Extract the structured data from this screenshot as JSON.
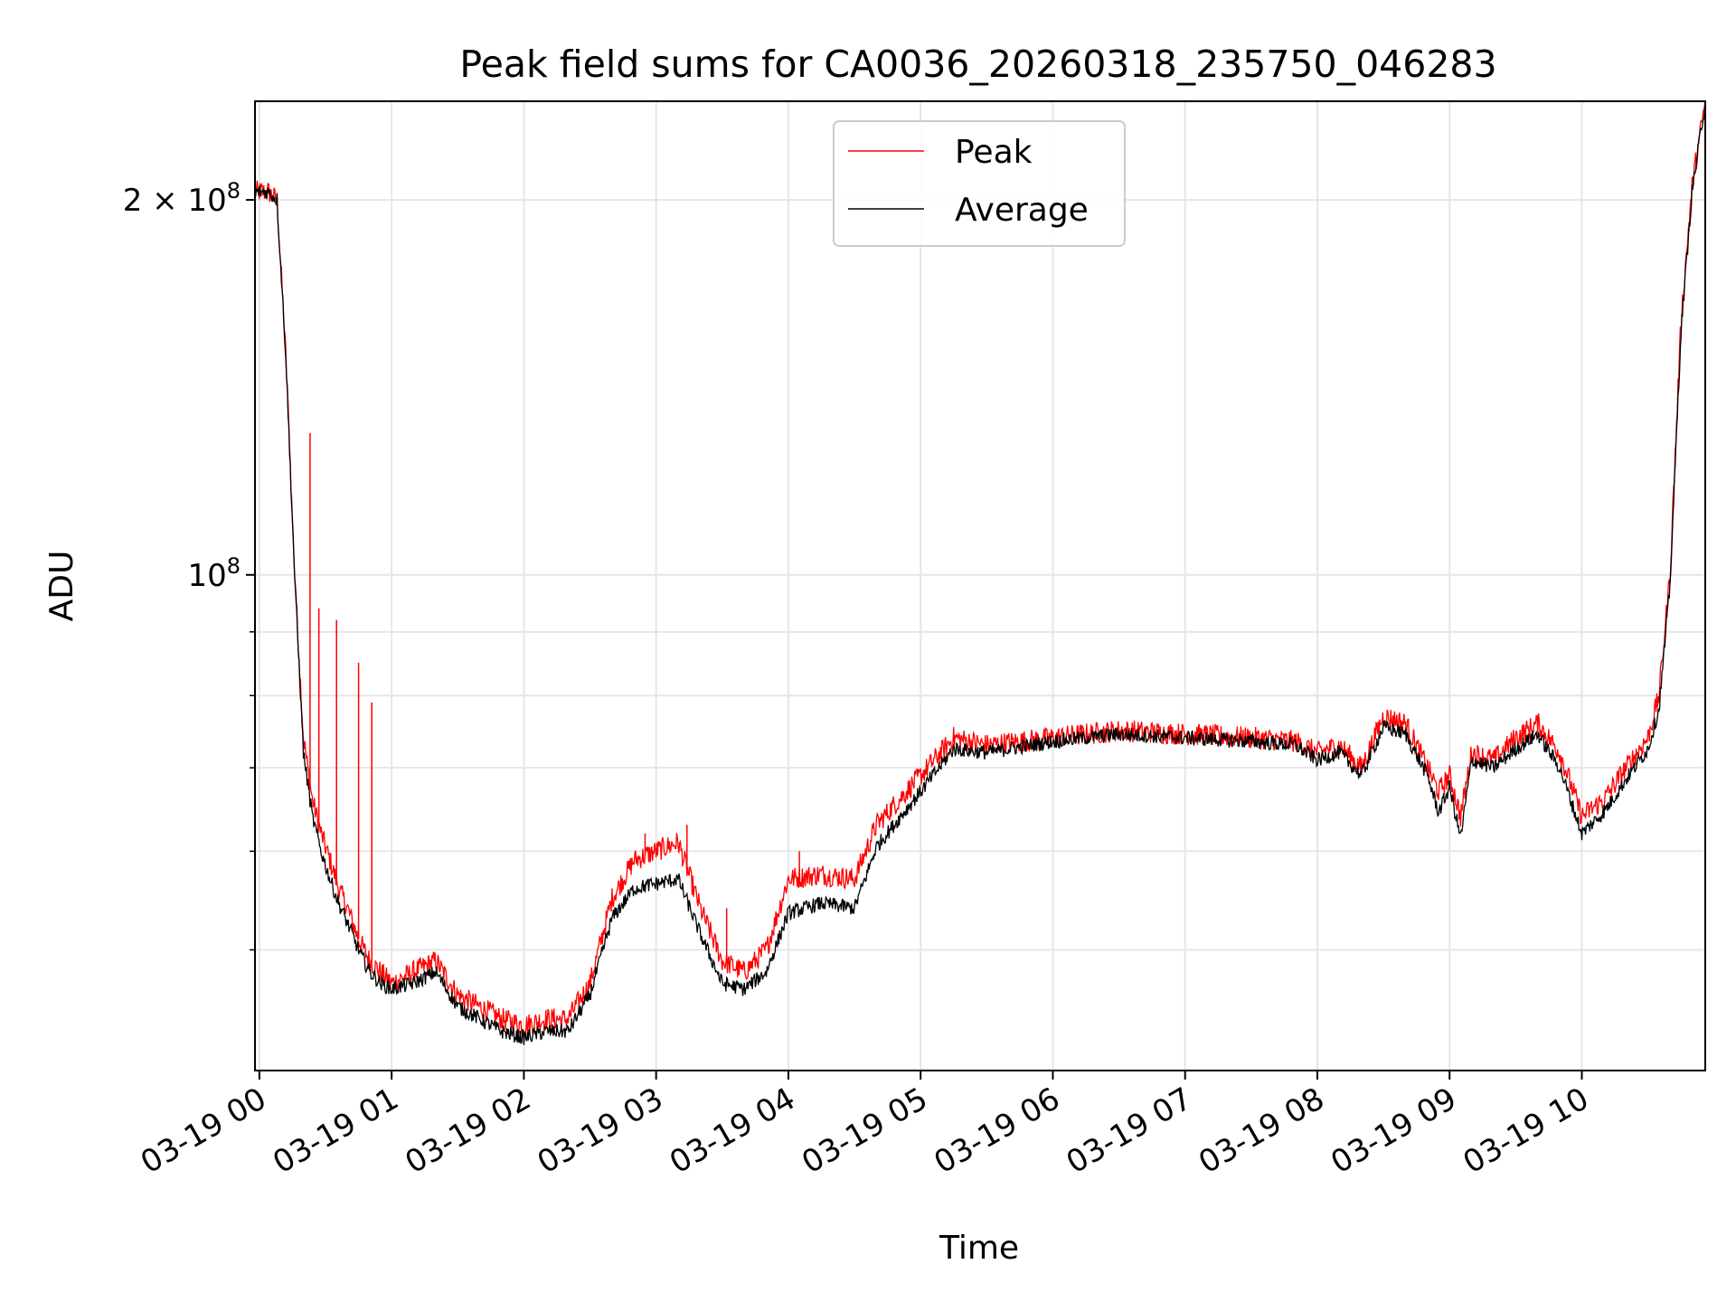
{
  "chart_data": {
    "type": "line",
    "title": "Peak field sums for CA0036_20260318_235750_046283",
    "xlabel": "Time",
    "ylabel": "ADU",
    "y_scale": "log",
    "ylim": [
      40000000,
      240000000
    ],
    "xlim": [
      "2026-03-18 23:58",
      "2026-03-19 10:56"
    ],
    "grid": true,
    "legend_position": "top-center",
    "x_tick_labels": [
      "03-19 00",
      "03-19 01",
      "03-19 02",
      "03-19 03",
      "03-19 04",
      "03-19 05",
      "03-19 06",
      "03-19 07",
      "03-19 08",
      "03-19 09",
      "03-19 10"
    ],
    "x_tick_times": [
      "2026-03-19 00:00",
      "2026-03-19 01:00",
      "2026-03-19 02:00",
      "2026-03-19 03:00",
      "2026-03-19 04:00",
      "2026-03-19 05:00",
      "2026-03-19 06:00",
      "2026-03-19 07:00",
      "2026-03-19 08:00",
      "2026-03-19 09:00",
      "2026-03-19 10:00"
    ],
    "y_major_ticks": [
      {
        "value": 100000000,
        "label_base": "10",
        "label_exp": "8",
        "label_prefix": ""
      },
      {
        "value": 200000000,
        "label_base": "10",
        "label_exp": "8",
        "label_prefix": "2 × "
      }
    ],
    "y_minor_ticks": [
      50000000,
      60000000,
      70000000,
      80000000,
      90000000
    ],
    "series": [
      {
        "name": "Peak",
        "color": "#ff0000",
        "x": [
          "2026-03-18 23:58",
          "2026-03-19 00:04",
          "2026-03-19 00:08",
          "2026-03-19 00:12",
          "2026-03-19 00:16",
          "2026-03-19 00:20",
          "2026-03-19 00:24",
          "2026-03-19 00:28",
          "2026-03-19 00:32",
          "2026-03-19 00:36",
          "2026-03-19 00:40",
          "2026-03-19 00:45",
          "2026-03-19 00:50",
          "2026-03-19 00:55",
          "2026-03-19 01:00",
          "2026-03-19 01:10",
          "2026-03-19 01:20",
          "2026-03-19 01:30",
          "2026-03-19 01:40",
          "2026-03-19 01:50",
          "2026-03-19 02:00",
          "2026-03-19 02:10",
          "2026-03-19 02:20",
          "2026-03-19 02:30",
          "2026-03-19 02:40",
          "2026-03-19 02:50",
          "2026-03-19 03:00",
          "2026-03-19 03:10",
          "2026-03-19 03:20",
          "2026-03-19 03:30",
          "2026-03-19 03:40",
          "2026-03-19 03:50",
          "2026-03-19 04:00",
          "2026-03-19 04:15",
          "2026-03-19 04:30",
          "2026-03-19 04:40",
          "2026-03-19 05:00",
          "2026-03-19 05:15",
          "2026-03-19 05:30",
          "2026-03-19 06:00",
          "2026-03-19 06:30",
          "2026-03-19 07:00",
          "2026-03-19 07:30",
          "2026-03-19 07:50",
          "2026-03-19 08:00",
          "2026-03-19 08:10",
          "2026-03-19 08:20",
          "2026-03-19 08:30",
          "2026-03-19 08:40",
          "2026-03-19 08:50",
          "2026-03-19 08:55",
          "2026-03-19 09:00",
          "2026-03-19 09:05",
          "2026-03-19 09:10",
          "2026-03-19 09:20",
          "2026-03-19 09:30",
          "2026-03-19 09:40",
          "2026-03-19 09:50",
          "2026-03-19 10:00",
          "2026-03-19 10:10",
          "2026-03-19 10:20",
          "2026-03-19 10:25",
          "2026-03-19 10:30",
          "2026-03-19 10:35",
          "2026-03-19 10:40",
          "2026-03-19 10:45",
          "2026-03-19 10:50",
          "2026-03-19 10:56"
        ],
        "y": [
          203000000,
          203000000,
          200000000,
          150000000,
          100000000,
          74000000,
          66000000,
          62000000,
          59000000,
          56000000,
          54000000,
          51000000,
          49000000,
          48000000,
          47000000,
          48000000,
          49000000,
          46000000,
          45000000,
          44000000,
          43500000,
          44000000,
          44000000,
          47000000,
          55000000,
          59000000,
          60000000,
          61000000,
          54000000,
          49000000,
          48000000,
          50000000,
          57000000,
          57500000,
          57000000,
          63000000,
          69000000,
          74000000,
          73000000,
          74000000,
          75000000,
          74500000,
          74000000,
          73500000,
          72000000,
          73000000,
          70000000,
          77000000,
          76000000,
          70000000,
          67000000,
          69000000,
          64000000,
          72000000,
          71000000,
          74000000,
          76000000,
          72000000,
          64000000,
          66000000,
          70000000,
          72000000,
          74000000,
          80000000,
          100000000,
          160000000,
          205000000,
          240000000
        ]
      },
      {
        "name": "Average",
        "color": "#000000",
        "x": [
          "2026-03-18 23:58",
          "2026-03-19 00:04",
          "2026-03-19 00:08",
          "2026-03-19 00:12",
          "2026-03-19 00:16",
          "2026-03-19 00:20",
          "2026-03-19 00:24",
          "2026-03-19 00:28",
          "2026-03-19 00:32",
          "2026-03-19 00:36",
          "2026-03-19 00:40",
          "2026-03-19 00:45",
          "2026-03-19 00:50",
          "2026-03-19 00:55",
          "2026-03-19 01:00",
          "2026-03-19 01:10",
          "2026-03-19 01:20",
          "2026-03-19 01:30",
          "2026-03-19 01:40",
          "2026-03-19 01:50",
          "2026-03-19 02:00",
          "2026-03-19 02:10",
          "2026-03-19 02:20",
          "2026-03-19 02:30",
          "2026-03-19 02:40",
          "2026-03-19 02:50",
          "2026-03-19 03:00",
          "2026-03-19 03:10",
          "2026-03-19 03:20",
          "2026-03-19 03:30",
          "2026-03-19 03:40",
          "2026-03-19 03:50",
          "2026-03-19 04:00",
          "2026-03-19 04:15",
          "2026-03-19 04:30",
          "2026-03-19 04:40",
          "2026-03-19 05:00",
          "2026-03-19 05:15",
          "2026-03-19 05:30",
          "2026-03-19 06:00",
          "2026-03-19 06:30",
          "2026-03-19 07:00",
          "2026-03-19 07:30",
          "2026-03-19 07:50",
          "2026-03-19 08:00",
          "2026-03-19 08:10",
          "2026-03-19 08:20",
          "2026-03-19 08:30",
          "2026-03-19 08:40",
          "2026-03-19 08:50",
          "2026-03-19 08:55",
          "2026-03-19 09:00",
          "2026-03-19 09:05",
          "2026-03-19 09:10",
          "2026-03-19 09:20",
          "2026-03-19 09:30",
          "2026-03-19 09:40",
          "2026-03-19 09:50",
          "2026-03-19 10:00",
          "2026-03-19 10:10",
          "2026-03-19 10:20",
          "2026-03-19 10:25",
          "2026-03-19 10:30",
          "2026-03-19 10:35",
          "2026-03-19 10:40",
          "2026-03-19 10:45",
          "2026-03-19 10:50",
          "2026-03-19 10:56"
        ],
        "y": [
          203000000,
          203000000,
          200000000,
          150000000,
          100000000,
          72000000,
          64000000,
          60000000,
          57000000,
          54500000,
          52500000,
          50000000,
          48000000,
          47000000,
          46500000,
          47000000,
          48000000,
          45000000,
          44000000,
          43000000,
          42500000,
          43000000,
          43000000,
          46000000,
          53000000,
          56000000,
          56500000,
          57000000,
          51500000,
          47000000,
          46500000,
          48000000,
          53500000,
          54500000,
          54000000,
          60500000,
          67000000,
          72500000,
          72000000,
          73500000,
          74500000,
          74000000,
          73500000,
          73000000,
          71000000,
          72000000,
          69000000,
          75500000,
          74500000,
          69000000,
          64500000,
          67500000,
          61500000,
          71000000,
          70000000,
          72500000,
          74500000,
          70000000,
          62000000,
          64500000,
          68500000,
          70500000,
          72500000,
          78000000,
          98000000,
          157000000,
          203000000,
          240000000
        ]
      }
    ],
    "peak_spikes": [
      {
        "x": "2026-03-19 00:23",
        "y": 130000000
      },
      {
        "x": "2026-03-19 00:27",
        "y": 94000000
      },
      {
        "x": "2026-03-19 00:35",
        "y": 92000000
      },
      {
        "x": "2026-03-19 00:45",
        "y": 85000000
      },
      {
        "x": "2026-03-19 00:51",
        "y": 79000000
      },
      {
        "x": "2026-03-19 02:55",
        "y": 62000000
      },
      {
        "x": "2026-03-19 03:14",
        "y": 63000000
      },
      {
        "x": "2026-03-19 03:32",
        "y": 54000000
      },
      {
        "x": "2026-03-19 04:05",
        "y": 60000000
      }
    ]
  }
}
